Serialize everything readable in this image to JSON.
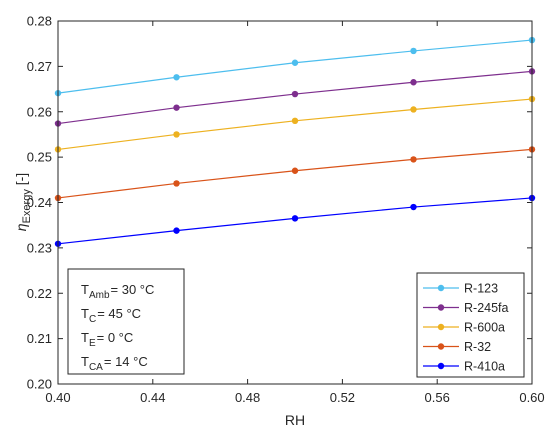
{
  "chart_data": {
    "type": "line",
    "xlabel": "RH",
    "ylabel": {
      "main": "η",
      "sub": "Exergy",
      "suffix": " [-]"
    },
    "xlim": [
      0.4,
      0.6
    ],
    "ylim": [
      0.2,
      0.28
    ],
    "xticks": [
      0.4,
      0.44,
      0.48,
      0.52,
      0.56,
      0.6
    ],
    "yticks": [
      0.2,
      0.21,
      0.22,
      0.23,
      0.24,
      0.25,
      0.26,
      0.27,
      0.28
    ],
    "xtick_labels": [
      "0.40",
      "0.44",
      "0.48",
      "0.52",
      "0.56",
      "0.60"
    ],
    "ytick_labels": [
      "0.20",
      "0.21",
      "0.22",
      "0.23",
      "0.24",
      "0.25",
      "0.26",
      "0.27",
      "0.28"
    ],
    "x": [
      0.4,
      0.45,
      0.5,
      0.55,
      0.6
    ],
    "series": [
      {
        "name": "R-123",
        "color": "#4DBEEE",
        "values": [
          0.2641,
          0.2676,
          0.2708,
          0.2734,
          0.2758
        ]
      },
      {
        "name": "R-245fa",
        "color": "#7E2F8E",
        "values": [
          0.2574,
          0.2609,
          0.2639,
          0.2665,
          0.2689
        ]
      },
      {
        "name": "R-600a",
        "color": "#EDB120",
        "values": [
          0.2517,
          0.255,
          0.258,
          0.2605,
          0.2628
        ]
      },
      {
        "name": "R-32",
        "color": "#D95319",
        "values": [
          0.241,
          0.2442,
          0.247,
          0.2495,
          0.2517
        ]
      },
      {
        "name": "R-410a",
        "color": "#0000FF",
        "values": [
          0.2309,
          0.2338,
          0.2365,
          0.239,
          0.241
        ]
      }
    ],
    "grid": false,
    "legend_position": "bottom-right",
    "conditions": [
      {
        "main": "T",
        "sub": "Amb",
        "rest": "= 30 °C"
      },
      {
        "main": "T",
        "sub": "C",
        "rest": "= 45 °C"
      },
      {
        "main": "T",
        "sub": "E",
        "rest": "= 0 °C"
      },
      {
        "main": "T",
        "sub": "CA",
        "rest": "= 14 °C"
      }
    ]
  }
}
